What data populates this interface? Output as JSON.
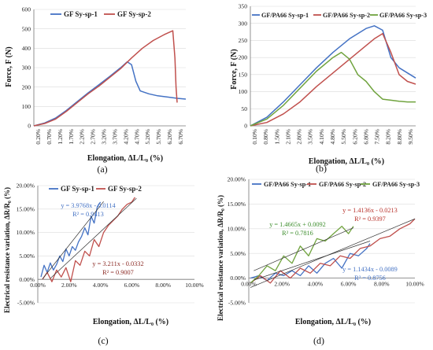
{
  "panels": [
    {
      "id": "a",
      "panel_label": "(a)",
      "xlabel": "Elongation, ΔL/L₀ (%)",
      "ylabel": "Force, F (N)",
      "x_ticks": [
        "0.20%",
        "0.70%",
        "1.20%",
        "1.70%",
        "2.20%",
        "2.70%",
        "3.20%",
        "3.70%",
        "4.20%",
        "4.70%",
        "5.20%",
        "5.70%",
        "6.20%",
        "6.70%"
      ],
      "y_ticks": [
        "0",
        "100",
        "200",
        "300",
        "400",
        "500",
        "600"
      ],
      "legend": [
        "GF Sy-sp-1",
        "GF Sy-sp-2"
      ],
      "colors": [
        "#4472C4",
        "#C0504D"
      ]
    },
    {
      "id": "b",
      "panel_label": "(b)",
      "xlabel": "Elongation, ΔL/L₀ (%)",
      "ylabel": "Force, F (N)",
      "x_ticks": [
        "0.10%",
        "0.80%",
        "1.50%",
        "2.10%",
        "2.80%",
        "3.50%",
        "4.10%",
        "4.80%",
        "5.50%",
        "6.20%",
        "6.80%",
        "7.50%",
        "8.20%",
        "8.80%",
        "9.50%"
      ],
      "y_ticks": [
        "0",
        "50",
        "100",
        "150",
        "200",
        "250",
        "300",
        "350"
      ],
      "legend": [
        "GF/PA66 Sy-sp-1",
        "GF/PA66 Sy-sp-2",
        "GF/PA66 Sy-sp-3"
      ],
      "colors": [
        "#4472C4",
        "#C0504D",
        "#70A33E"
      ]
    },
    {
      "id": "c",
      "panel_label": "(c)",
      "xlabel": "Elongation, ΔL/L₀ (%)",
      "ylabel": "Electrical resistance variation, ΔR/R₀ (%)",
      "x_ticks": [
        "0.00%",
        "2.00%",
        "4.00%",
        "6.00%",
        "8.00%",
        "10.00%"
      ],
      "y_ticks": [
        "-5.00%",
        "0.00%",
        "5.00%",
        "10.00%",
        "15.00%",
        "20.00%"
      ],
      "legend": [
        "GF Sy-sp-1",
        "GF Sy-sp-2"
      ],
      "colors": [
        "#4472C4",
        "#C0504D"
      ],
      "equations": [
        {
          "eq": "y = 3.9768x - 0.0114",
          "r2": "R² = 0.9413",
          "color": "#4472C4"
        },
        {
          "eq": "y = 3.211x - 0.0332",
          "r2": "R² = 0.9007",
          "color": "#8B2A24"
        }
      ]
    },
    {
      "id": "d",
      "panel_label": "(d)",
      "xlabel": "Elongation, ΔL/L₀ (%)",
      "ylabel": "Electrical resistance variation, ΔR/R₀ (%)",
      "x_ticks": [
        "0.00%",
        "2.00%",
        "4.00%",
        "6.00%",
        "8.00%",
        "10.00%"
      ],
      "y_ticks": [
        "-5.00%",
        "0.00%",
        "5.00%",
        "10.00%",
        "15.00%",
        "20.00%"
      ],
      "legend": [
        "GF/PA66 Sy-sp-1",
        "GF/PA66 Sy-sp-2",
        "GF/PA66 Sy-sp-3"
      ],
      "colors": [
        "#4472C4",
        "#C0504D",
        "#70A33E"
      ],
      "equations": [
        {
          "eq": "y = 1.4136x - 0.0213",
          "r2": "R² = 0.9397",
          "color": "#B8312A"
        },
        {
          "eq": "y = 1.4665x + 0.0092",
          "r2": "R² = 0.7816",
          "color": "#3E8E2E"
        },
        {
          "eq": "y = 1.1434x - 0.0089",
          "r2": "R² = 0.8756",
          "color": "#4472C4"
        }
      ]
    }
  ],
  "chart_data": [
    {
      "type": "line",
      "xlabel": "Elongation, ΔL/L₀ (%)",
      "ylabel": "Force, F (N)",
      "xlim": [
        0,
        7.0
      ],
      "ylim": [
        0,
        600
      ],
      "series": [
        {
          "name": "GF Sy-sp-1",
          "x": [
            0,
            0.5,
            1.0,
            1.5,
            2.0,
            2.5,
            3.0,
            3.5,
            4.0,
            4.3,
            4.5,
            4.7,
            4.9,
            5.3,
            5.7,
            6.2,
            6.6,
            7.0
          ],
          "y": [
            0,
            15,
            40,
            80,
            125,
            170,
            212,
            255,
            300,
            330,
            315,
            230,
            180,
            165,
            155,
            148,
            142,
            138
          ]
        },
        {
          "name": "GF Sy-sp-2",
          "x": [
            0,
            0.5,
            1.0,
            1.5,
            2.0,
            2.5,
            3.0,
            3.5,
            4.0,
            4.5,
            5.0,
            5.5,
            6.0,
            6.4,
            6.5,
            6.55,
            6.6
          ],
          "y": [
            0,
            12,
            35,
            75,
            120,
            165,
            205,
            250,
            295,
            350,
            400,
            440,
            470,
            490,
            350,
            200,
            120
          ]
        }
      ]
    },
    {
      "type": "line",
      "xlabel": "Elongation, ΔL/L₀ (%)",
      "ylabel": "Force, F (N)",
      "xlim": [
        0,
        10
      ],
      "ylim": [
        0,
        350
      ],
      "series": [
        {
          "name": "GF/PA66 Sy-sp-1",
          "x": [
            0,
            1,
            2,
            3,
            4,
            5,
            6,
            7,
            7.5,
            8,
            8.5,
            9,
            9.5,
            10
          ],
          "y": [
            0,
            25,
            70,
            120,
            170,
            215,
            255,
            285,
            293,
            280,
            200,
            170,
            155,
            140
          ]
        },
        {
          "name": "GF/PA66 Sy-sp-2",
          "x": [
            0,
            1,
            2,
            3,
            4,
            5,
            6,
            7,
            7.5,
            8,
            8.5,
            9,
            9.5,
            10
          ],
          "y": [
            0,
            10,
            35,
            70,
            115,
            155,
            195,
            235,
            255,
            270,
            215,
            150,
            130,
            122
          ]
        },
        {
          "name": "GF/PA66 Sy-sp-3",
          "x": [
            0,
            1,
            2,
            3,
            4,
            5,
            5.5,
            6,
            6.5,
            7,
            7.5,
            8,
            8.5,
            9,
            9.5,
            10
          ],
          "y": [
            0,
            20,
            60,
            110,
            160,
            200,
            215,
            195,
            150,
            130,
            100,
            78,
            75,
            72,
            70,
            70
          ]
        }
      ]
    },
    {
      "type": "line",
      "xlabel": "Elongation, ΔL/L₀ (%)",
      "ylabel": "Electrical resistance variation, ΔR/R₀ (%)",
      "xlim": [
        0,
        10
      ],
      "ylim": [
        -5,
        20
      ],
      "series": [
        {
          "name": "GF Sy-sp-1",
          "x": [
            0.2,
            0.4,
            0.6,
            0.8,
            1.0,
            1.2,
            1.4,
            1.6,
            1.8,
            2.0,
            2.2,
            2.4,
            2.6,
            2.8,
            3.0,
            3.2,
            3.4,
            3.6,
            3.8,
            4.0
          ],
          "y": [
            0.5,
            3.0,
            1.5,
            3.5,
            2.0,
            3.2,
            5.0,
            3.8,
            6.5,
            5.0,
            7.0,
            6.2,
            8.0,
            9.2,
            11.0,
            9.5,
            13.5,
            12.0,
            15.5,
            16.5
          ]
        },
        {
          "name": "GF Sy-sp-2",
          "x": [
            0.3,
            0.6,
            0.9,
            1.2,
            1.5,
            1.8,
            2.1,
            2.4,
            2.7,
            3.0,
            3.3,
            3.6,
            3.9,
            4.2,
            4.5,
            4.8,
            5.1,
            5.4,
            5.7,
            6.0,
            6.2
          ],
          "y": [
            0.0,
            1.5,
            -0.5,
            2.0,
            0.5,
            2.5,
            -0.5,
            4.0,
            3.0,
            6.0,
            5.0,
            8.5,
            7.0,
            10.0,
            11.5,
            12.5,
            13.5,
            15.0,
            16.0,
            16.5,
            17.5
          ]
        }
      ]
    },
    {
      "type": "line",
      "xlabel": "Elongation, ΔL/L₀ (%)",
      "ylabel": "Electrical resistance variation, ΔR/R₀ (%)",
      "xlim": [
        0,
        10
      ],
      "ylim": [
        -5,
        20
      ],
      "series": [
        {
          "name": "GF/PA66 Sy-sp-1",
          "x": [
            0.1,
            0.6,
            1.1,
            1.6,
            2.1,
            2.6,
            3.1,
            3.6,
            4.1,
            4.6,
            5.1,
            5.6,
            6.1,
            6.6,
            7.1,
            7.3
          ],
          "y": [
            0.0,
            0.5,
            -0.5,
            1.0,
            0.5,
            1.5,
            0.5,
            2.5,
            1.0,
            3.0,
            4.0,
            2.0,
            5.0,
            4.5,
            6.0,
            7.0
          ]
        },
        {
          "name": "GF/PA66 Sy-sp-2",
          "x": [
            0.1,
            0.7,
            1.3,
            1.9,
            2.5,
            3.1,
            3.7,
            4.3,
            4.9,
            5.5,
            6.1,
            6.7,
            7.3,
            7.9,
            8.5,
            9.1,
            9.7,
            10.0
          ],
          "y": [
            -1.0,
            0.5,
            -1.0,
            1.5,
            0.0,
            2.0,
            1.0,
            3.0,
            2.5,
            4.5,
            4.0,
            6.0,
            6.5,
            8.0,
            8.5,
            10.0,
            11.0,
            12.0
          ]
        },
        {
          "name": "GF/PA66 Sy-sp-3",
          "x": [
            0.1,
            0.6,
            1.1,
            1.6,
            2.1,
            2.6,
            3.1,
            3.6,
            4.1,
            4.6,
            5.1,
            5.6,
            6.0,
            6.3
          ],
          "y": [
            -1.0,
            0.5,
            2.5,
            1.5,
            4.5,
            3.0,
            6.5,
            4.5,
            8.0,
            7.5,
            9.0,
            10.5,
            9.0,
            10.5
          ]
        }
      ]
    }
  ]
}
